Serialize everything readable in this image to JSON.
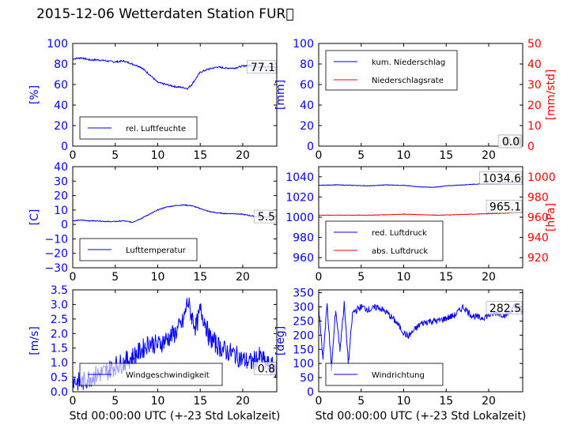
{
  "title": "2015-12-06 Wetterdaten Station FUR\u0000",
  "colors": {
    "left_axis": "#0000ff",
    "right_axis": "#ff0000",
    "text": "#000000"
  },
  "chart_data": [
    {
      "type": "line",
      "panel": "top-left",
      "ylabel": "[%]",
      "ylim": [
        0,
        100
      ],
      "yticks": [
        "0",
        "20",
        "40",
        "60",
        "80",
        "100"
      ],
      "xlim": [
        0,
        24
      ],
      "xticks": [
        "0",
        "5",
        "10",
        "15",
        "20"
      ],
      "xlabel": "",
      "legend_position": "lower-left",
      "series": [
        {
          "name": "rel. Luftfeuchte",
          "color": "#0000ff",
          "x": [
            0,
            1,
            2,
            3,
            4,
            5,
            6,
            7,
            8,
            9,
            10,
            11,
            12,
            13,
            13.5,
            14,
            15,
            16,
            17,
            18,
            19,
            20,
            21,
            22,
            23,
            24
          ],
          "y": [
            85,
            86,
            84,
            84,
            83,
            82,
            83,
            80,
            77,
            70,
            62,
            60,
            58,
            57,
            56,
            60,
            72,
            75,
            77,
            76,
            76,
            78,
            79,
            77,
            77,
            77
          ]
        }
      ],
      "annotations": [
        "77.1"
      ]
    },
    {
      "type": "line",
      "panel": "top-right",
      "ylabel": "[mm]",
      "ylim": [
        0,
        100
      ],
      "yticks": [
        "0",
        "20",
        "40",
        "60",
        "80",
        "100"
      ],
      "y2label": "[mm/std]",
      "y2lim": [
        0,
        50
      ],
      "y2ticks": [
        "0",
        "10",
        "20",
        "30",
        "40",
        "50"
      ],
      "xlim": [
        0,
        24
      ],
      "xticks": [
        "0",
        "5",
        "10",
        "15",
        "20"
      ],
      "xlabel": "",
      "legend_position": "upper-left",
      "series": [
        {
          "name": "kum. Niederschlag",
          "color": "#0000ff",
          "axis": "left",
          "x": [
            0,
            24
          ],
          "y": [
            0,
            0
          ]
        },
        {
          "name": "Niederschlagsrate",
          "color": "#ff0000",
          "axis": "right",
          "x": [
            0,
            24
          ],
          "y": [
            0,
            0
          ]
        }
      ],
      "annotations": [
        "0.0",
        "0.0"
      ]
    },
    {
      "type": "line",
      "panel": "middle-left",
      "ylabel": "[C]",
      "ylim": [
        -30,
        40
      ],
      "yticks": [
        "−30",
        "−20",
        "−10",
        "0",
        "10",
        "20",
        "30",
        "40"
      ],
      "xlim": [
        0,
        24
      ],
      "xticks": [
        "0",
        "5",
        "10",
        "15",
        "20"
      ],
      "xlabel": "",
      "legend_position": "lower-left",
      "series": [
        {
          "name": "Lufttemperatur",
          "color": "#0000ff",
          "x": [
            0,
            1,
            2,
            3,
            4,
            5,
            6,
            7,
            8,
            9,
            10,
            11,
            12,
            13,
            14,
            15,
            16,
            17,
            18,
            19,
            20,
            21,
            22,
            23,
            24
          ],
          "y": [
            2.5,
            3,
            2.5,
            2.5,
            2,
            2,
            2.5,
            1.5,
            4,
            7,
            10,
            12,
            13,
            13.5,
            13,
            11,
            9,
            8,
            7.5,
            7.5,
            7,
            6,
            5,
            5,
            5.5
          ]
        }
      ],
      "annotations": [
        "5.5"
      ]
    },
    {
      "type": "line",
      "panel": "middle-right",
      "ylabel": "",
      "ylim": [
        950,
        1050
      ],
      "yticks": [
        "960",
        "980",
        "1000",
        "1020",
        "1040"
      ],
      "y2label": "[hPa]",
      "y2lim": [
        910,
        1010
      ],
      "y2ticks": [
        "920",
        "940",
        "960",
        "980",
        "1000"
      ],
      "xlim": [
        0,
        24
      ],
      "xticks": [
        "0",
        "5",
        "10",
        "15",
        "20"
      ],
      "xlabel": "",
      "legend_position": "lower-left",
      "series": [
        {
          "name": "red. Luftdruck",
          "color": "#0000ff",
          "axis": "left",
          "x": [
            0,
            2,
            4,
            6,
            8,
            10,
            12,
            13.5,
            15,
            17,
            19,
            21,
            24
          ],
          "y": [
            1031.5,
            1032,
            1031.5,
            1031,
            1032,
            1031.5,
            1030,
            1029.5,
            1031,
            1032,
            1033,
            1033.5,
            1034.6
          ]
        },
        {
          "name": "abs. Luftdruck",
          "color": "#ff0000",
          "axis": "right",
          "x": [
            0,
            3,
            6,
            8,
            10,
            12,
            14,
            16,
            18,
            20,
            22,
            24
          ],
          "y": [
            962,
            962,
            962,
            962.5,
            963,
            962.5,
            962,
            962.5,
            963,
            963.5,
            964,
            965.1
          ]
        }
      ],
      "annotations": [
        "1034.6",
        "965.1"
      ]
    },
    {
      "type": "line",
      "panel": "bottom-left",
      "ylabel": "[m/s]",
      "ylim": [
        0,
        3.5
      ],
      "yticks": [
        "0.0",
        "0.5",
        "1.0",
        "1.5",
        "2.0",
        "2.5",
        "3.0",
        "3.5"
      ],
      "xlim": [
        0,
        24
      ],
      "xticks": [
        "0",
        "5",
        "10",
        "15",
        "20"
      ],
      "xlabel": "Std 00:00:00 UTC (+-23 Std Lokalzeit)",
      "legend_position": "lower-left",
      "series": [
        {
          "name": "Windgeschwindigkeit",
          "color": "#0000ff",
          "x": [
            0,
            1,
            2,
            3,
            4,
            5,
            6,
            7,
            8,
            9,
            10,
            11,
            12,
            13,
            13.5,
            14,
            14.5,
            15,
            15.5,
            16,
            17,
            18,
            19,
            20,
            21,
            22,
            23,
            24
          ],
          "y": [
            0.4,
            0.3,
            0.5,
            0.6,
            0.7,
            0.9,
            1.0,
            1.2,
            1.4,
            1.7,
            1.6,
            1.8,
            2.0,
            2.4,
            3.1,
            2.6,
            2.2,
            2.8,
            2.5,
            1.9,
            1.6,
            1.4,
            1.3,
            1.1,
            1.0,
            1.2,
            0.9,
            0.8
          ]
        }
      ],
      "annotations": [
        "0.8"
      ]
    },
    {
      "type": "line",
      "panel": "bottom-right",
      "ylabel": "[deg]",
      "ylim": [
        0,
        360
      ],
      "yticks": [
        "0",
        "50",
        "100",
        "150",
        "200",
        "250",
        "300",
        "350"
      ],
      "xlim": [
        0,
        24
      ],
      "xticks": [
        "0",
        "5",
        "10",
        "15",
        "20"
      ],
      "xlabel": "Std 00:00:00 UTC (+-23 Std Lokalzeit)",
      "legend_position": "lower-left",
      "series": [
        {
          "name": "Windrichtung",
          "color": "#0000ff",
          "x": [
            0,
            0.5,
            1,
            1.5,
            2,
            2.5,
            3,
            3.5,
            4,
            5,
            6,
            7,
            8,
            9,
            10,
            10.5,
            11,
            12,
            13,
            14,
            15,
            16,
            17,
            18,
            19,
            20,
            21,
            22,
            23,
            24
          ],
          "y": [
            300,
            120,
            310,
            80,
            290,
            150,
            310,
            100,
            280,
            300,
            290,
            300,
            280,
            250,
            210,
            195,
            210,
            240,
            250,
            250,
            260,
            270,
            300,
            270,
            260,
            270,
            280,
            270,
            300,
            282.5
          ]
        }
      ],
      "annotations": [
        "282.5"
      ]
    }
  ]
}
